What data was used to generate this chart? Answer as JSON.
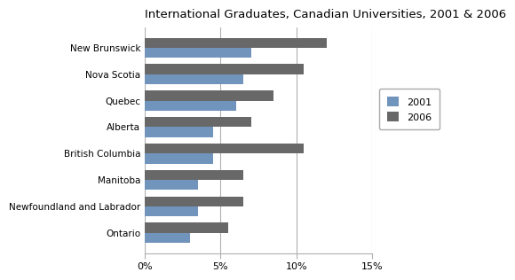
{
  "title": "International Graduates, Canadian Universities, 2001 & 2006",
  "categories": [
    "New Brunswick",
    "Nova Scotia",
    "Quebec",
    "Alberta",
    "British Columbia",
    "Manitoba",
    "Newfoundland and Labrador",
    "Ontario"
  ],
  "values_2001": [
    7.0,
    6.5,
    6.0,
    4.5,
    4.5,
    3.5,
    3.5,
    3.0
  ],
  "values_2006": [
    12.0,
    10.5,
    8.5,
    7.0,
    10.5,
    6.5,
    6.5,
    5.5
  ],
  "color_2001": "#7094bc",
  "color_2006": "#686868",
  "xlim": [
    0,
    15
  ],
  "xticks": [
    0,
    5,
    10,
    15
  ],
  "xticklabels": [
    "0%",
    "5%",
    "10%",
    "15%"
  ],
  "legend_labels": [
    "2001",
    "2006"
  ],
  "bar_height": 0.38,
  "background_color": "#ffffff",
  "grid_color": "#b0b0b0"
}
